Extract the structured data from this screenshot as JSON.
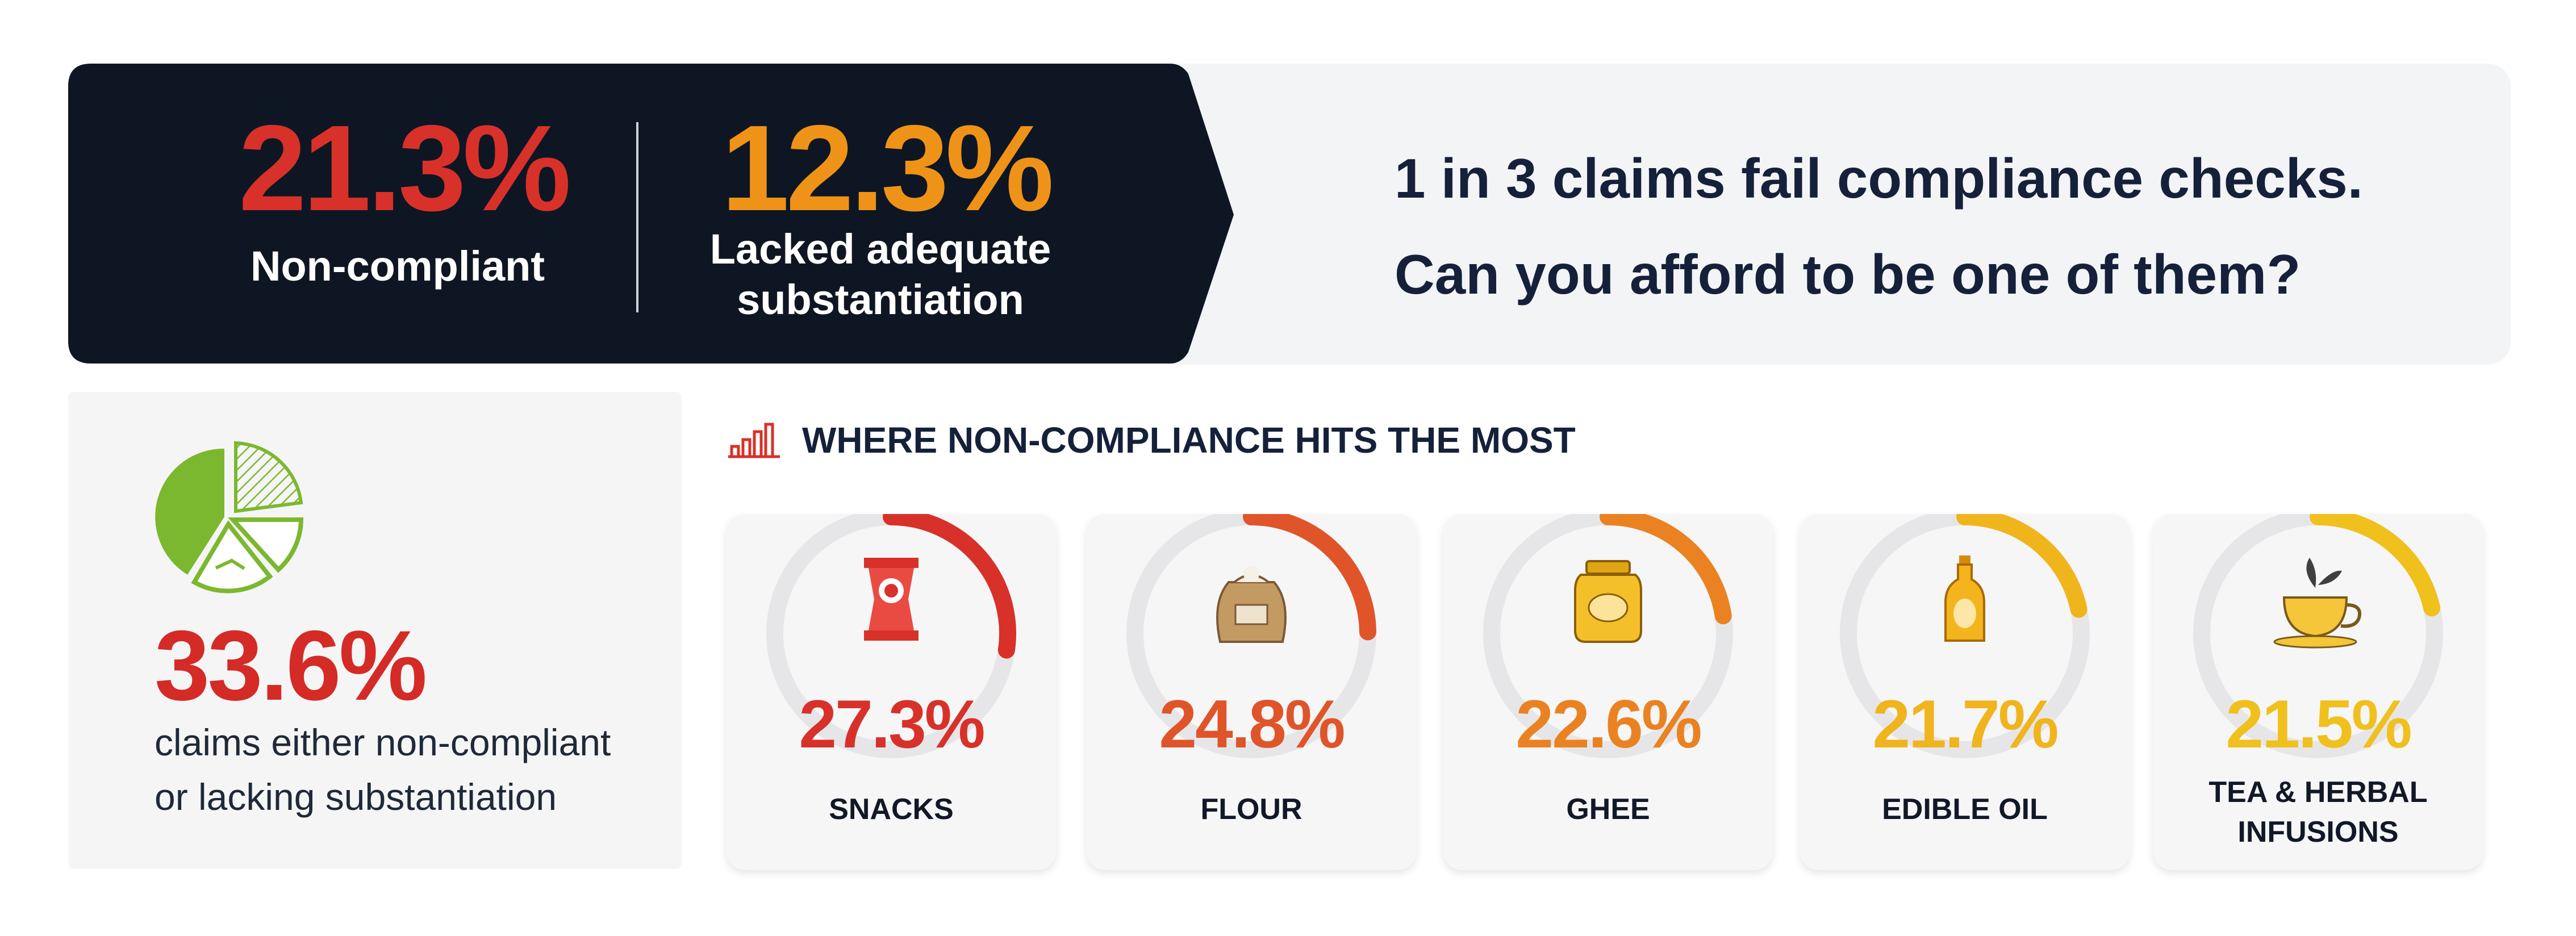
{
  "banner": {
    "stat1": {
      "value": "21.3%",
      "label": "Non-compliant",
      "color": "#d8312a"
    },
    "stat2": {
      "value": "12.3%",
      "label_line1": "Lacked adequate",
      "label_line2": "substantiation",
      "color": "#ef9318"
    },
    "headline_line1": "1 in 3 claims fail compliance checks.",
    "headline_line2": "Can you afford to be one of them?",
    "panel_color": "#0f1623"
  },
  "summary": {
    "value": "33.6%",
    "desc_line1": "claims either non-compliant",
    "desc_line2": "or lacking substantiation",
    "icon": "pie-chart-icon",
    "icon_color": "#7cb82f"
  },
  "section": {
    "title": "WHERE NON-COMPLIANCE HITS THE MOST",
    "icon": "bar-chart-icon"
  },
  "chart_data": {
    "type": "bar",
    "title": "WHERE NON-COMPLIANCE HITS THE MOST",
    "categories": [
      "SNACKS",
      "FLOUR",
      "GHEE",
      "EDIBLE OIL",
      "TEA & HERBAL INFUSIONS"
    ],
    "values": [
      27.3,
      24.8,
      22.6,
      21.7,
      21.5
    ],
    "value_labels": [
      "27.3%",
      "24.8%",
      "22.6%",
      "21.7%",
      "21.5%"
    ],
    "colors": [
      "#d8312a",
      "#e0542a",
      "#ea8222",
      "#f0b41d",
      "#f0c01d"
    ],
    "icons": [
      "snack-bag-icon",
      "flour-sack-icon",
      "ghee-jar-icon",
      "oil-bottle-icon",
      "tea-cup-icon"
    ],
    "label_lines": [
      [
        "SNACKS"
      ],
      [
        "FLOUR"
      ],
      [
        "GHEE"
      ],
      [
        "EDIBLE OIL"
      ],
      [
        "TEA & HERBAL",
        "INFUSIONS"
      ]
    ],
    "ylim": [
      0,
      100
    ]
  }
}
